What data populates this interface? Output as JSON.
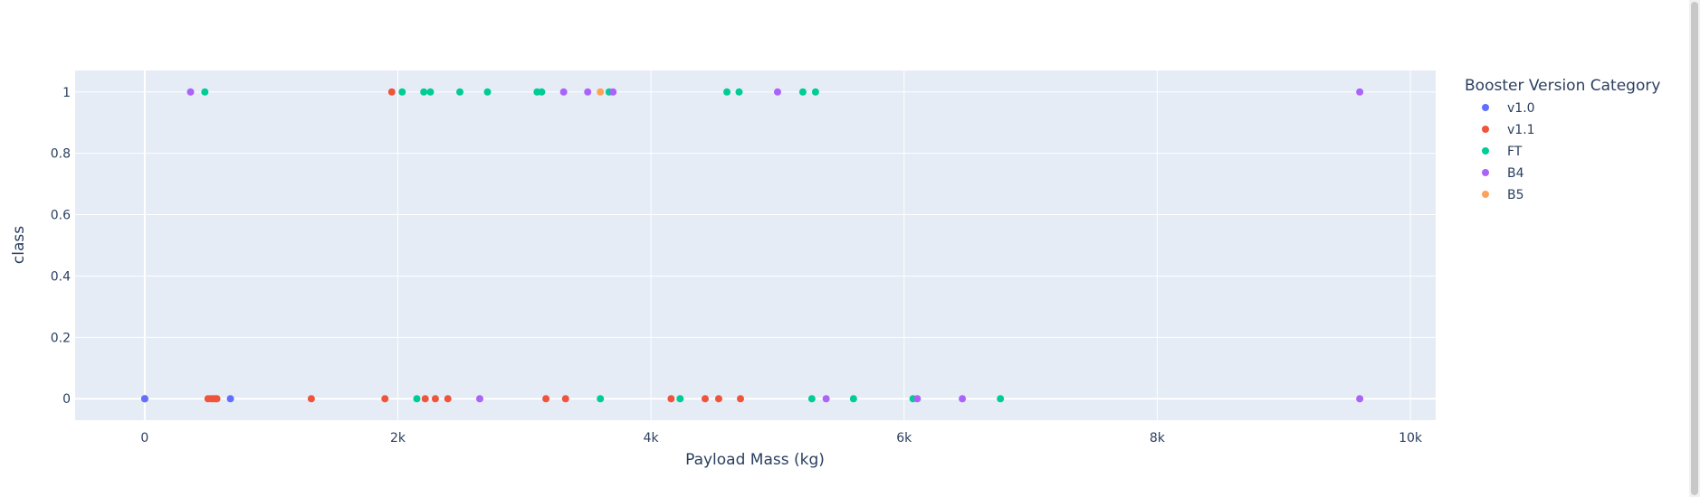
{
  "chart_data": {
    "type": "scatter",
    "title": "",
    "xlabel": "Payload Mass (kg)",
    "ylabel": "class",
    "xlim": [
      -550,
      10200
    ],
    "ylim": [
      -0.07,
      1.07
    ],
    "x_ticks": [
      0,
      2000,
      4000,
      6000,
      8000,
      10000
    ],
    "x_tick_labels": [
      "0",
      "2k",
      "4k",
      "6k",
      "8k",
      "10k"
    ],
    "y_ticks": [
      0,
      0.2,
      0.4,
      0.6,
      0.8,
      1
    ],
    "y_tick_labels": [
      "0",
      "0.2",
      "0.4",
      "0.6",
      "0.8",
      "1"
    ],
    "grid": true,
    "background": "#e5ecf6",
    "legend_title": "Booster Version Category",
    "legend_position": "right",
    "series": [
      {
        "name": "v1.0",
        "color": "#636efa",
        "x": [
          0,
          0,
          677
        ],
        "y": [
          0,
          0,
          0
        ]
      },
      {
        "name": "v1.1",
        "color": "#ef553b",
        "x": [
          1952,
          500,
          525,
          540,
          560,
          570,
          1316,
          1898,
          2216,
          2296,
          2395,
          3170,
          3325,
          4159,
          4428,
          4535,
          4707
        ],
        "y": [
          1,
          0,
          0,
          0,
          0,
          0,
          0,
          0,
          0,
          0,
          0,
          0,
          0,
          0,
          0,
          0,
          0
        ]
      },
      {
        "name": "FT",
        "color": "#00cc96",
        "x": [
          475,
          2034,
          2205,
          2257,
          2490,
          2708,
          3100,
          3136,
          3669,
          4600,
          4696,
          5200,
          5300,
          2150,
          3600,
          4230,
          5271,
          5600,
          6070,
          6761
        ],
        "y": [
          1,
          1,
          1,
          1,
          1,
          1,
          1,
          1,
          1,
          1,
          1,
          1,
          1,
          0,
          0,
          0,
          0,
          0,
          0,
          0
        ]
      },
      {
        "name": "B4",
        "color": "#ab63fa",
        "x": [
          362,
          3310,
          3500,
          3700,
          5000,
          9600,
          2647,
          5384,
          6104,
          6460,
          9600
        ],
        "y": [
          1,
          1,
          1,
          1,
          1,
          1,
          0,
          0,
          0,
          0,
          0
        ]
      },
      {
        "name": "B5",
        "color": "#ffa15a",
        "x": [
          3600
        ],
        "y": [
          1
        ]
      }
    ]
  }
}
